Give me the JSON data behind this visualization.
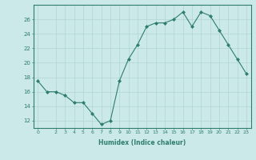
{
  "x": [
    0,
    1,
    2,
    3,
    4,
    5,
    6,
    7,
    8,
    9,
    10,
    11,
    12,
    13,
    14,
    15,
    16,
    17,
    18,
    19,
    20,
    21,
    22,
    23
  ],
  "y": [
    17.5,
    16.0,
    16.0,
    15.5,
    14.5,
    14.5,
    13.0,
    11.5,
    12.0,
    17.5,
    20.5,
    22.5,
    25.0,
    25.5,
    25.5,
    26.0,
    27.0,
    25.0,
    27.0,
    26.5,
    24.5,
    22.5,
    20.5,
    18.5
  ],
  "line_color": "#2e7d6e",
  "marker": "D",
  "marker_size": 2.0,
  "bg_color": "#cce9e9",
  "grid_color": "#b0d4d4",
  "tick_color": "#2e7d6e",
  "label_color": "#2e7d6e",
  "xlabel": "Humidex (Indice chaleur)",
  "xlim": [
    -0.5,
    23.5
  ],
  "ylim": [
    11,
    28
  ],
  "yticks": [
    12,
    14,
    16,
    18,
    20,
    22,
    24,
    26
  ],
  "xticks": [
    0,
    2,
    3,
    4,
    5,
    6,
    7,
    8,
    9,
    10,
    11,
    12,
    13,
    14,
    15,
    16,
    17,
    18,
    19,
    20,
    21,
    22,
    23
  ]
}
